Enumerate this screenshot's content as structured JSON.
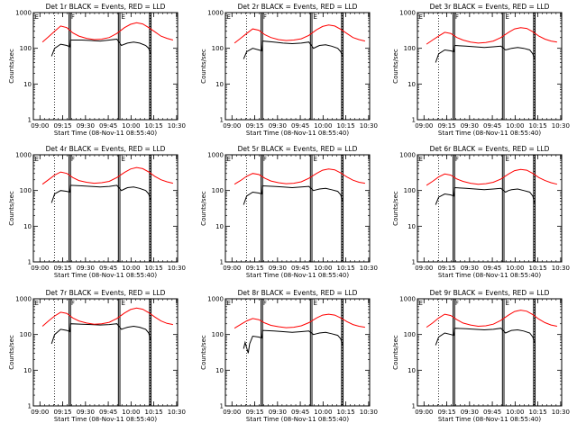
{
  "figure": {
    "ylabel": "Counts/sec",
    "xlabel": "Start Time (08-Nov-11 08:55:40)",
    "x_tick_labels": [
      "09:00",
      "09:15",
      "09:30",
      "09:45",
      "10:00",
      "10:15",
      "10:30"
    ],
    "y_tick_labels": [
      "1",
      "10",
      "100",
      "1000"
    ]
  },
  "colors": {
    "events": "#000000",
    "lld": "#ff0000",
    "axes": "#000000"
  },
  "chart_data": [
    {
      "type": "line",
      "title": "Det 1r BLACK = Events, RED = LLD",
      "xlim": [
        0,
        95
      ],
      "ylim": [
        1,
        1000
      ],
      "yscale": "log",
      "flags": [
        "E",
        "F",
        "E"
      ],
      "series": [
        {
          "name": "Events",
          "x": [
            12,
            14,
            18,
            22,
            24,
            24.5,
            32,
            38,
            44,
            50,
            55,
            58,
            60,
            62,
            66,
            70,
            74,
            76,
            77
          ],
          "y": [
            60,
            100,
            130,
            120,
            110,
            170,
            170,
            165,
            160,
            170,
            180,
            120,
            130,
            140,
            150,
            140,
            120,
            100,
            70
          ]
        },
        {
          "name": "LLD",
          "x": [
            6,
            10,
            14,
            18,
            22,
            26,
            30,
            35,
            40,
            45,
            50,
            55,
            60,
            64,
            68,
            72,
            76,
            80,
            84,
            88,
            92
          ],
          "y": [
            150,
            210,
            300,
            420,
            380,
            270,
            220,
            190,
            175,
            180,
            200,
            260,
            380,
            470,
            520,
            480,
            380,
            290,
            220,
            190,
            170
          ]
        }
      ]
    },
    {
      "type": "line",
      "title": "Det 2r BLACK = Events, RED = LLD",
      "xlim": [
        0,
        95
      ],
      "ylim": [
        1,
        1000
      ],
      "yscale": "log",
      "flags": [
        "E",
        "F",
        "E"
      ],
      "series": [
        {
          "name": "Events",
          "x": [
            12,
            14,
            18,
            22,
            24,
            24.5,
            32,
            38,
            44,
            50,
            55,
            58,
            60,
            62,
            66,
            70,
            74,
            76,
            77
          ],
          "y": [
            50,
            80,
            100,
            90,
            85,
            160,
            150,
            140,
            135,
            140,
            150,
            100,
            110,
            120,
            125,
            115,
            100,
            80,
            60
          ]
        },
        {
          "name": "LLD",
          "x": [
            6,
            10,
            14,
            18,
            22,
            26,
            30,
            35,
            40,
            45,
            50,
            55,
            60,
            64,
            68,
            72,
            76,
            80,
            84,
            88,
            92
          ],
          "y": [
            140,
            190,
            260,
            350,
            320,
            240,
            200,
            175,
            165,
            170,
            185,
            230,
            330,
            410,
            450,
            420,
            340,
            260,
            200,
            175,
            160
          ]
        }
      ]
    },
    {
      "type": "line",
      "title": "Det 3r BLACK = Events, RED = LLD",
      "xlim": [
        0,
        95
      ],
      "ylim": [
        1,
        1000
      ],
      "yscale": "log",
      "flags": [
        "E",
        "F",
        "E"
      ],
      "series": [
        {
          "name": "Events",
          "x": [
            12,
            14,
            18,
            22,
            24,
            24.5,
            32,
            38,
            44,
            50,
            55,
            58,
            60,
            62,
            66,
            70,
            74,
            76,
            77
          ],
          "y": [
            40,
            70,
            90,
            85,
            80,
            120,
            115,
            110,
            105,
            110,
            115,
            90,
            95,
            100,
            105,
            100,
            90,
            70,
            50
          ]
        },
        {
          "name": "LLD",
          "x": [
            6,
            10,
            14,
            18,
            22,
            26,
            30,
            35,
            40,
            45,
            50,
            55,
            60,
            64,
            68,
            72,
            76,
            80,
            84,
            88,
            92
          ],
          "y": [
            130,
            170,
            220,
            280,
            260,
            200,
            170,
            150,
            140,
            145,
            160,
            200,
            280,
            350,
            380,
            360,
            290,
            220,
            180,
            160,
            150
          ]
        }
      ]
    },
    {
      "type": "line",
      "title": "Det 4r BLACK = Events, RED = LLD",
      "xlim": [
        0,
        95
      ],
      "ylim": [
        1,
        1000
      ],
      "yscale": "log",
      "flags": [
        "E",
        "F",
        "E"
      ],
      "series": [
        {
          "name": "Events",
          "x": [
            12,
            14,
            18,
            22,
            24,
            24.5,
            32,
            38,
            44,
            50,
            55,
            58,
            60,
            62,
            66,
            70,
            74,
            76,
            77
          ],
          "y": [
            45,
            80,
            100,
            95,
            90,
            140,
            135,
            130,
            125,
            130,
            140,
            100,
            110,
            120,
            125,
            115,
            100,
            80,
            55
          ]
        },
        {
          "name": "LLD",
          "x": [
            6,
            10,
            14,
            18,
            22,
            26,
            30,
            35,
            40,
            45,
            50,
            55,
            60,
            64,
            68,
            72,
            76,
            80,
            84,
            88,
            92
          ],
          "y": [
            150,
            200,
            270,
            330,
            300,
            230,
            190,
            170,
            160,
            165,
            180,
            230,
            320,
            400,
            440,
            410,
            330,
            250,
            200,
            175,
            160
          ]
        }
      ]
    },
    {
      "type": "line",
      "title": "Det 5r BLACK = Events, RED = LLD",
      "xlim": [
        0,
        95
      ],
      "ylim": [
        1,
        1000
      ],
      "yscale": "log",
      "flags": [
        "E",
        "F",
        "E"
      ],
      "series": [
        {
          "name": "Events",
          "x": [
            12,
            14,
            18,
            22,
            24,
            24.5,
            32,
            38,
            44,
            50,
            55,
            58,
            60,
            62,
            66,
            70,
            74,
            76,
            77
          ],
          "y": [
            40,
            70,
            90,
            85,
            80,
            135,
            130,
            125,
            120,
            125,
            130,
            100,
            105,
            110,
            115,
            105,
            95,
            75,
            50
          ]
        },
        {
          "name": "LLD",
          "x": [
            6,
            10,
            14,
            18,
            22,
            26,
            30,
            35,
            40,
            45,
            50,
            55,
            60,
            64,
            68,
            72,
            76,
            80,
            84,
            88,
            92
          ],
          "y": [
            150,
            190,
            250,
            300,
            280,
            220,
            185,
            165,
            155,
            160,
            175,
            220,
            300,
            370,
            400,
            380,
            310,
            240,
            195,
            170,
            160
          ]
        }
      ]
    },
    {
      "type": "line",
      "title": "Det 6r BLACK = Events, RED = LLD",
      "xlim": [
        0,
        95
      ],
      "ylim": [
        1,
        1000
      ],
      "yscale": "log",
      "flags": [
        "E",
        "F",
        "E"
      ],
      "series": [
        {
          "name": "Events",
          "x": [
            12,
            14,
            18,
            22,
            24,
            24.5,
            32,
            38,
            44,
            50,
            55,
            58,
            60,
            62,
            66,
            70,
            74,
            76,
            77
          ],
          "y": [
            40,
            65,
            80,
            75,
            70,
            120,
            115,
            110,
            105,
            110,
            115,
            90,
            100,
            105,
            110,
            100,
            90,
            70,
            45
          ]
        },
        {
          "name": "LLD",
          "x": [
            6,
            10,
            14,
            18,
            22,
            26,
            30,
            35,
            40,
            45,
            50,
            55,
            60,
            64,
            68,
            72,
            76,
            80,
            84,
            88,
            92
          ],
          "y": [
            140,
            180,
            240,
            290,
            270,
            210,
            180,
            160,
            150,
            155,
            170,
            210,
            290,
            360,
            390,
            370,
            300,
            230,
            190,
            165,
            150
          ]
        }
      ]
    },
    {
      "type": "line",
      "title": "Det 7r BLACK = Events, RED = LLD",
      "xlim": [
        0,
        95
      ],
      "ylim": [
        1,
        1000
      ],
      "yscale": "log",
      "flags": [
        "E",
        "F",
        "E"
      ],
      "series": [
        {
          "name": "Events",
          "x": [
            12,
            14,
            18,
            22,
            24,
            24.5,
            32,
            38,
            44,
            50,
            55,
            58,
            60,
            62,
            66,
            70,
            74,
            76,
            77
          ],
          "y": [
            55,
            100,
            140,
            130,
            120,
            200,
            195,
            190,
            185,
            190,
            200,
            140,
            150,
            160,
            170,
            160,
            140,
            110,
            70
          ]
        },
        {
          "name": "LLD",
          "x": [
            6,
            10,
            14,
            18,
            22,
            26,
            30,
            35,
            40,
            45,
            50,
            55,
            60,
            64,
            68,
            72,
            76,
            80,
            84,
            88,
            92
          ],
          "y": [
            170,
            240,
            330,
            420,
            390,
            290,
            240,
            210,
            195,
            200,
            220,
            280,
            400,
            500,
            550,
            510,
            410,
            310,
            240,
            205,
            190
          ]
        }
      ]
    },
    {
      "type": "line",
      "title": "Det 8r BLACK = Events, RED = LLD",
      "xlim": [
        0,
        95
      ],
      "ylim": [
        1,
        1000
      ],
      "yscale": "log",
      "flags": [
        "E",
        "F",
        "E"
      ],
      "series": [
        {
          "name": "Events",
          "x": [
            12,
            13,
            15,
            16,
            18,
            22,
            24,
            24.5,
            32,
            38,
            44,
            50,
            55,
            58,
            60,
            62,
            66,
            70,
            74,
            76,
            77
          ],
          "y": [
            40,
            60,
            30,
            55,
            90,
            85,
            80,
            130,
            125,
            120,
            115,
            120,
            125,
            100,
            105,
            110,
            115,
            105,
            95,
            75,
            50
          ]
        },
        {
          "name": "LLD",
          "x": [
            6,
            10,
            14,
            18,
            22,
            26,
            30,
            35,
            40,
            45,
            50,
            55,
            60,
            64,
            68,
            72,
            76,
            80,
            84,
            88,
            92
          ],
          "y": [
            150,
            190,
            240,
            280,
            260,
            210,
            180,
            165,
            155,
            160,
            175,
            215,
            290,
            350,
            370,
            350,
            290,
            230,
            190,
            170,
            160
          ]
        }
      ]
    },
    {
      "type": "line",
      "title": "Det 9r BLACK = Events, RED = LLD",
      "xlim": [
        0,
        95
      ],
      "ylim": [
        1,
        1000
      ],
      "yscale": "log",
      "flags": [
        "E",
        "F",
        "E"
      ],
      "series": [
        {
          "name": "Events",
          "x": [
            12,
            14,
            18,
            22,
            24,
            24.5,
            32,
            38,
            44,
            50,
            55,
            58,
            60,
            62,
            66,
            70,
            74,
            76,
            77
          ],
          "y": [
            50,
            85,
            110,
            100,
            95,
            150,
            145,
            140,
            135,
            140,
            150,
            110,
            120,
            130,
            135,
            125,
            110,
            85,
            60
          ]
        },
        {
          "name": "LLD",
          "x": [
            6,
            10,
            14,
            18,
            22,
            26,
            30,
            35,
            40,
            45,
            50,
            55,
            60,
            64,
            68,
            72,
            76,
            80,
            84,
            88,
            92
          ],
          "y": [
            160,
            210,
            290,
            370,
            340,
            260,
            210,
            185,
            170,
            175,
            195,
            250,
            350,
            440,
            480,
            450,
            360,
            270,
            215,
            185,
            170
          ]
        }
      ]
    }
  ]
}
